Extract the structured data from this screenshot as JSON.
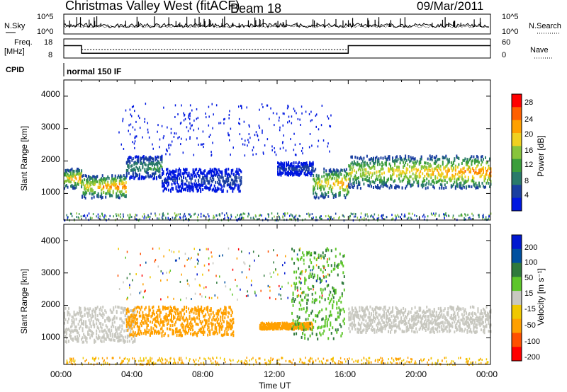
{
  "header": {
    "title": "Christmas Valley West (fitACF)",
    "beam": "Beam 18",
    "date": "09/Mar/2011"
  },
  "top_panels": {
    "nsky_label": "N.Sky",
    "nsky_ticks": [
      "10^5",
      "10^0"
    ],
    "nsearch_label": "N.Search",
    "nsearch_ticks": [
      "10^5",
      "10^0"
    ],
    "freq_label_line1": "Freq.",
    "freq_label_line2": "[MHz]",
    "freq_ticks": [
      "18",
      "8"
    ],
    "nave_label": "Nave",
    "nave_ticks": [
      "60",
      "0"
    ],
    "cpid_label": "CPID",
    "cpid_text": "normal 150 IF"
  },
  "panels": {
    "power": {
      "ylabel": "Slant Range [km]",
      "yticks": [
        "4000",
        "3000",
        "2000",
        "1000"
      ],
      "colorbar_label": "Power [dB]",
      "colorbar_ticks": [
        "28",
        "24",
        "20",
        "16",
        "12",
        "8",
        "4"
      ],
      "colors": [
        "#0018e0",
        "#1a3fa0",
        "#2a7a6a",
        "#3c9e3c",
        "#88c43c",
        "#f0d020",
        "#ffa000",
        "#ff6000",
        "#ff0000"
      ]
    },
    "velocity": {
      "ylabel": "Slant Range [km]",
      "yticks": [
        "4000",
        "3000",
        "2000",
        "1000"
      ],
      "colorbar_label": "Velocity [m s⁻¹]",
      "colorbar_ticks": [
        "200",
        "100",
        "50",
        "15",
        "-15",
        "-50",
        "-100",
        "-200"
      ],
      "colors": [
        "#0018d0",
        "#0050a0",
        "#2f7a3c",
        "#5ec62a",
        "#c8c8c0",
        "#f0c800",
        "#ffa000",
        "#ff5000",
        "#ff0000"
      ]
    }
  },
  "xaxis": {
    "label": "Time UT",
    "ticks": [
      "00:00",
      "04:00",
      "08:00",
      "12:00",
      "16:00",
      "20:00",
      "00:00"
    ]
  },
  "chart_data": {
    "type": "heatmap",
    "title": "Christmas Valley West (fitACF)",
    "xlabel": "Time UT",
    "ylabel": "Slant Range [km]",
    "xlim_hours": [
      0,
      24
    ],
    "ylim_km": [
      180,
      4500
    ],
    "frequency_mhz": [
      {
        "from_hour": 0,
        "to_hour": 1,
        "value": 14.5
      },
      {
        "from_hour": 1,
        "to_hour": 16,
        "value": 10.5
      },
      {
        "from_hour": 16,
        "to_hour": 24,
        "value": 14.5
      }
    ],
    "power_bands_db": [
      {
        "from_hour": 0.0,
        "to_hour": 1.0,
        "range_low_km": 1200,
        "range_high_km": 1800,
        "peak_db": 30
      },
      {
        "from_hour": 1.0,
        "to_hour": 3.5,
        "range_low_km": 900,
        "range_high_km": 1600,
        "peak_db": 30
      },
      {
        "from_hour": 3.5,
        "to_hour": 5.5,
        "range_low_km": 1500,
        "range_high_km": 2200,
        "peak_db": 14
      },
      {
        "from_hour": 5.5,
        "to_hour": 10.0,
        "range_low_km": 1100,
        "range_high_km": 1800,
        "peak_db": 6
      },
      {
        "from_hour": 12.0,
        "to_hour": 14.0,
        "range_low_km": 1600,
        "range_high_km": 2000,
        "peak_db": 6
      },
      {
        "from_hour": 14.0,
        "to_hour": 16.0,
        "range_low_km": 900,
        "range_high_km": 1800,
        "peak_db": 28
      },
      {
        "from_hour": 16.0,
        "to_hour": 24.0,
        "range_low_km": 1200,
        "range_high_km": 2200,
        "peak_db": 28
      }
    ],
    "velocity_bands_ms": [
      {
        "from_hour": 0.0,
        "to_hour": 4.0,
        "range_low_km": 900,
        "range_high_km": 2000,
        "velocity": 0
      },
      {
        "from_hour": 3.5,
        "to_hour": 9.5,
        "range_low_km": 1100,
        "range_high_km": 2000,
        "velocity": -40
      },
      {
        "from_hour": 11.0,
        "to_hour": 14.0,
        "range_low_km": 1300,
        "range_high_km": 1500,
        "velocity": -40
      },
      {
        "from_hour": 12.8,
        "to_hour": 15.8,
        "range_low_km": 1000,
        "range_high_km": 3800,
        "velocity": 30
      },
      {
        "from_hour": 16.0,
        "to_hour": 24.0,
        "range_low_km": 1200,
        "range_high_km": 2000,
        "velocity": 0
      }
    ]
  }
}
